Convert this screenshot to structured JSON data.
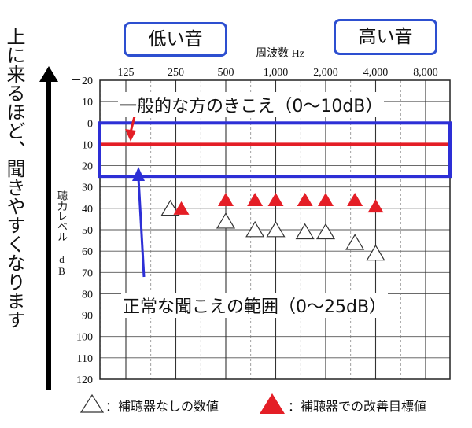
{
  "side_label": "上に来るほど、聞きやすくなります",
  "low_label": "低い音",
  "high_label": "高い音",
  "chart_data": {
    "type": "scatter",
    "xlabel": "周波数 Hz",
    "ylabel": "聴力レベル dB",
    "x_categories": [
      "125",
      "250",
      "500",
      "1,000",
      "2,000",
      "4,000",
      "8,000"
    ],
    "ylim": [
      -20,
      120
    ],
    "y_ticks": [
      "－20",
      "－10",
      "0",
      "10",
      "20",
      "30",
      "40",
      "50",
      "60",
      "70",
      "80",
      "90",
      "100",
      "110",
      "120"
    ],
    "grid": true,
    "reference_line": {
      "y": 10,
      "color": "#e41e26"
    },
    "normal_range": {
      "y": [
        0,
        25
      ],
      "color": "#2d2fd6"
    },
    "series": [
      {
        "name": "補聴器なしの数値",
        "marker": "open-triangle",
        "points": [
          {
            "x": "250",
            "y": 40
          },
          {
            "x": "500",
            "y": 46
          },
          {
            "x": "750",
            "y": 50
          },
          {
            "x": "1,000",
            "y": 50
          },
          {
            "x": "1,500",
            "y": 51
          },
          {
            "x": "2,000",
            "y": 51
          },
          {
            "x": "3,000",
            "y": 56
          },
          {
            "x": "4,000",
            "y": 61
          }
        ]
      },
      {
        "name": "補聴器での改善目標値",
        "marker": "filled-triangle",
        "color": "#e41e26",
        "points": [
          {
            "x": "250",
            "y": 40
          },
          {
            "x": "500",
            "y": 36
          },
          {
            "x": "750",
            "y": 36
          },
          {
            "x": "1,000",
            "y": 36
          },
          {
            "x": "1,500",
            "y": 36
          },
          {
            "x": "2,000",
            "y": 36
          },
          {
            "x": "3,000",
            "y": 36
          },
          {
            "x": "4,000",
            "y": 39
          }
        ]
      }
    ],
    "annotations": {
      "typical": "一般的な方のきこえ（0～10dB）",
      "normal": "正常な聞こえの範囲（0～25dB）"
    },
    "legend": {
      "open": "：補聴器なしの数値",
      "filled": "：補聴器での改善目標値"
    }
  }
}
